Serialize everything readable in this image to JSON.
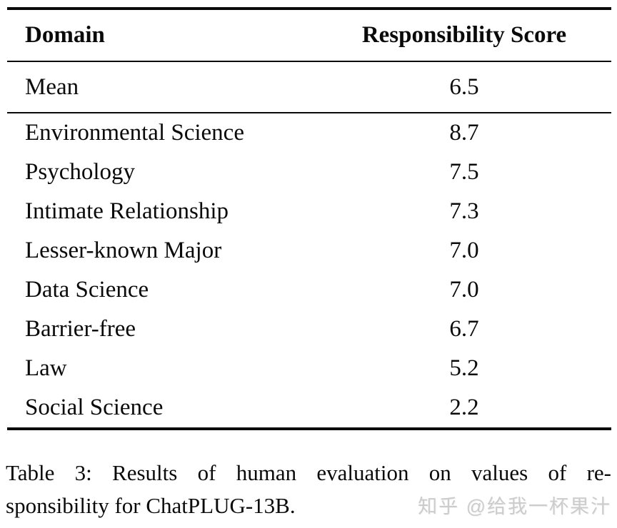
{
  "table": {
    "columns": [
      "Domain",
      "Responsibility Score"
    ],
    "mean_row": {
      "domain": "Mean",
      "score": "6.5"
    },
    "rows": [
      {
        "domain": "Environmental Science",
        "score": "8.7"
      },
      {
        "domain": "Psychology",
        "score": "7.5"
      },
      {
        "domain": "Intimate Relationship",
        "score": "7.3"
      },
      {
        "domain": "Lesser-known Major",
        "score": "7.0"
      },
      {
        "domain": "Data Science",
        "score": "7.0"
      },
      {
        "domain": "Barrier-free",
        "score": "6.7"
      },
      {
        "domain": "Law",
        "score": "5.2"
      },
      {
        "domain": "Social Science",
        "score": "2.2"
      }
    ]
  },
  "caption": {
    "line1": "Table 3: Results of human evaluation on values of re-",
    "line2": "sponsibility for ChatPLUG-13B."
  },
  "watermark": "知乎 @给我一杯果汁",
  "colors": {
    "text": "#0a0a0a",
    "rule": "#0a0a0a",
    "watermark": "#cccccc",
    "background": "#ffffff"
  }
}
